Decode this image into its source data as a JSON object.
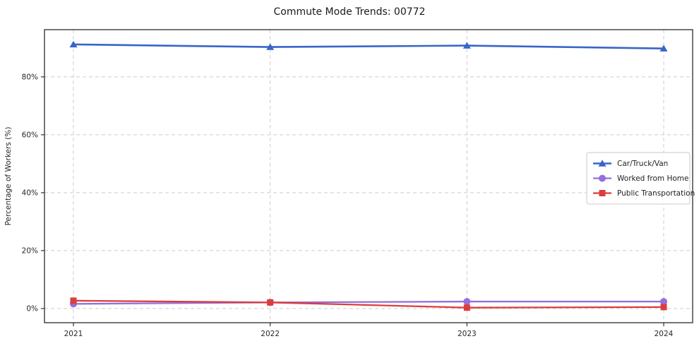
{
  "figure": {
    "background": "#ffffff",
    "border_color": "#2b2b2b",
    "grid_color": "#cccccc",
    "tick_color": "#333333",
    "text_color": "#262626"
  },
  "chart_data": {
    "type": "line",
    "title": "Commute Mode Trends: 00772",
    "xlabel": "",
    "ylabel": "Percentage of Workers (%)",
    "categories": [
      "2021",
      "2022",
      "2023",
      "2024"
    ],
    "ytick_labels": [
      "0%",
      "20%",
      "40%",
      "60%",
      "80%"
    ],
    "ytick_values": [
      0,
      20,
      40,
      60,
      80
    ],
    "ylim": [
      -4.9,
      96.3
    ],
    "grid": true,
    "legend_position": "center-right",
    "series": [
      {
        "name": "Car/Truck/Van",
        "color": "#3766c8",
        "marker": "triangle",
        "values": [
          91.2,
          90.3,
          90.8,
          89.8
        ]
      },
      {
        "name": "Worked from Home",
        "color": "#9370db",
        "marker": "circle",
        "values": [
          1.6,
          2.1,
          2.4,
          2.4
        ]
      },
      {
        "name": "Public Transportation",
        "color": "#db3e3e",
        "marker": "square",
        "values": [
          2.7,
          2.1,
          0.3,
          0.5
        ]
      }
    ]
  }
}
